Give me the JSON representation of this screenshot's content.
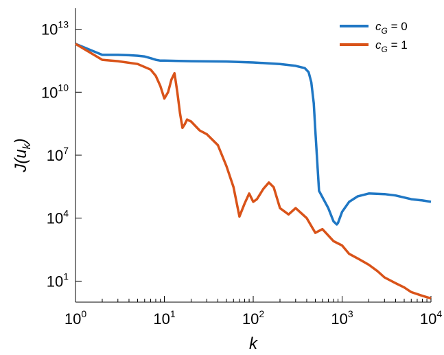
{
  "chart_data": {
    "type": "line",
    "xlabel": "k",
    "ylabel": "J(u_k)",
    "x_scale": "log",
    "y_scale": "log",
    "xlim": [
      1,
      10000
    ],
    "ylim": [
      1,
      100000000000000
    ],
    "xticks": [
      {
        "base": "10",
        "exp": "0"
      },
      {
        "base": "10",
        "exp": "1"
      },
      {
        "base": "10",
        "exp": "2"
      },
      {
        "base": "10",
        "exp": "3"
      },
      {
        "base": "10",
        "exp": "4"
      }
    ],
    "yticks": [
      {
        "base": "10",
        "exp": "1"
      },
      {
        "base": "10",
        "exp": "4"
      },
      {
        "base": "10",
        "exp": "7"
      },
      {
        "base": "10",
        "exp": "10"
      },
      {
        "base": "10",
        "exp": "13"
      }
    ],
    "legend_position": "top-right",
    "series": [
      {
        "name": "c_G = 0",
        "legend_main": "c",
        "legend_sub": "G",
        "legend_eq": "= 0",
        "color": "#1f77c4",
        "points": [
          [
            1,
            2000000000000.0
          ],
          [
            2,
            600000000000.0
          ],
          [
            3,
            600000000000.0
          ],
          [
            4,
            580000000000.0
          ],
          [
            5,
            550000000000.0
          ],
          [
            6,
            500000000000.0
          ],
          [
            7,
            420000000000.0
          ],
          [
            8,
            350000000000.0
          ],
          [
            9,
            320000000000.0
          ],
          [
            10,
            320000000000.0
          ],
          [
            20,
            300000000000.0
          ],
          [
            50,
            290000000000.0
          ],
          [
            100,
            260000000000.0
          ],
          [
            200,
            220000000000.0
          ],
          [
            300,
            180000000000.0
          ],
          [
            380,
            140000000000.0
          ],
          [
            420,
            90000000000.0
          ],
          [
            450,
            30000000000.0
          ],
          [
            480,
            3000000000.0
          ],
          [
            500,
            150000000.0
          ],
          [
            520,
            10000000.0
          ],
          [
            550,
            200000.0
          ],
          [
            600,
            100000.0
          ],
          [
            700,
            30000.0
          ],
          [
            800,
            7000.0
          ],
          [
            870,
            5000.0
          ],
          [
            900,
            6000.0
          ],
          [
            1000,
            20000.0
          ],
          [
            1200,
            60000.0
          ],
          [
            1500,
            110000.0
          ],
          [
            2000,
            150000.0
          ],
          [
            3000,
            140000.0
          ],
          [
            4000,
            120000.0
          ],
          [
            6000,
            80000.0
          ],
          [
            8000,
            70000.0
          ],
          [
            10000,
            60000.0
          ]
        ]
      },
      {
        "name": "c_G = 1",
        "legend_main": "c",
        "legend_sub": "G",
        "legend_eq": "= 1",
        "color": "#d95319",
        "points": [
          [
            1,
            2000000000000.0
          ],
          [
            2,
            350000000000.0
          ],
          [
            3,
            300000000000.0
          ],
          [
            5,
            220000000000.0
          ],
          [
            7,
            120000000000.0
          ],
          [
            8,
            60000000000.0
          ],
          [
            9,
            20000000000.0
          ],
          [
            10,
            5000000000.0
          ],
          [
            11,
            10000000000.0
          ],
          [
            12,
            40000000000.0
          ],
          [
            13,
            80000000000.0
          ],
          [
            14,
            10000000000.0
          ],
          [
            15,
            1000000000.0
          ],
          [
            16,
            200000000.0
          ],
          [
            17,
            300000000.0
          ],
          [
            18,
            500000000.0
          ],
          [
            20,
            400000000.0
          ],
          [
            25,
            150000000.0
          ],
          [
            30,
            100000000.0
          ],
          [
            40,
            30000000.0
          ],
          [
            50,
            3000000.0
          ],
          [
            60,
            300000.0
          ],
          [
            70,
            12000.0
          ],
          [
            80,
            50000.0
          ],
          [
            90,
            150000.0
          ],
          [
            100,
            60000.0
          ],
          [
            110,
            80000.0
          ],
          [
            130,
            250000.0
          ],
          [
            150,
            500000.0
          ],
          [
            170,
            300000.0
          ],
          [
            200,
            30000.0
          ],
          [
            250,
            15000.0
          ],
          [
            300,
            30000.0
          ],
          [
            400,
            10000.0
          ],
          [
            500,
            2000.0
          ],
          [
            600,
            3000.0
          ],
          [
            700,
            1500.0
          ],
          [
            800,
            800.0
          ],
          [
            1000,
            500.0
          ],
          [
            1200,
            200.0
          ],
          [
            1500,
            120.0
          ],
          [
            2000,
            60.0
          ],
          [
            2500,
            30.0
          ],
          [
            3000,
            15.0
          ],
          [
            4000,
            8.0
          ],
          [
            5000,
            5.0
          ],
          [
            6000,
            3.0
          ],
          [
            8000,
            2.0
          ],
          [
            10000,
            1.5
          ]
        ]
      }
    ]
  }
}
